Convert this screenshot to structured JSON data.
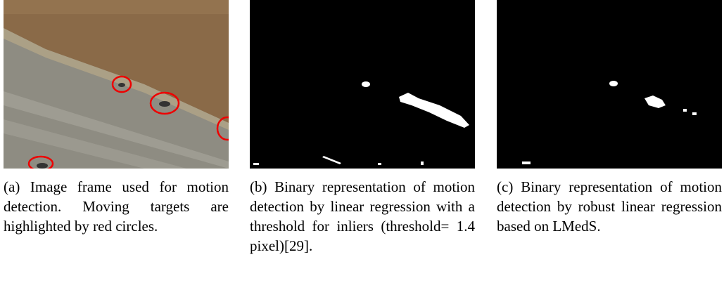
{
  "figure": {
    "panels": [
      {
        "caption": "(a) Image frame used for motion detection. Moving targets are highlighted by red circles."
      },
      {
        "caption": "(b) Binary representation of motion detection by linear regression with a threshold for inliers (threshold= 1.4 pixel)[29]."
      },
      {
        "caption": "(c) Binary representation of motion detection by robust linear regression based on LMedS."
      }
    ]
  }
}
